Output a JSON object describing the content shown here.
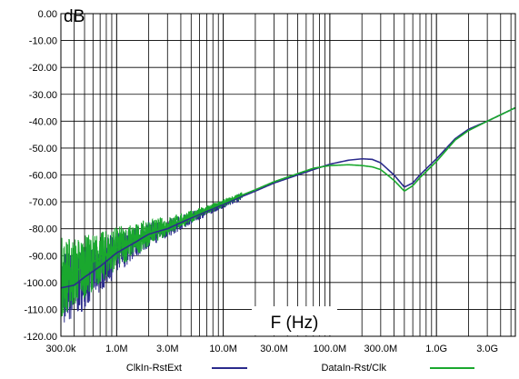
{
  "chart_data": {
    "type": "line",
    "title": "",
    "ylabel": "dB",
    "xlabel": "F (Hz)",
    "x_scale": "log",
    "xlim": [
      300000,
      5500000000
    ],
    "ylim": [
      -120,
      0
    ],
    "grid": true,
    "y_ticks": [
      {
        "value": 0,
        "label": "0.00"
      },
      {
        "value": -10,
        "label": "-10.00"
      },
      {
        "value": -20,
        "label": "-20.00"
      },
      {
        "value": -30,
        "label": "-30.00"
      },
      {
        "value": -40,
        "label": "-40.00"
      },
      {
        "value": -50,
        "label": "-50.00"
      },
      {
        "value": -60,
        "label": "-60.00"
      },
      {
        "value": -70,
        "label": "-70.00"
      },
      {
        "value": -80,
        "label": "-80.00"
      },
      {
        "value": -90,
        "label": "-90.00"
      },
      {
        "value": -100,
        "label": "-100.00"
      },
      {
        "value": -110,
        "label": "-110.00"
      },
      {
        "value": -120,
        "label": "-120.00"
      }
    ],
    "x_ticks": [
      {
        "value": 300000,
        "label": "300.0k"
      },
      {
        "value": 1000000,
        "label": "1.0M"
      },
      {
        "value": 3000000,
        "label": "3.0M"
      },
      {
        "value": 10000000,
        "label": "10.0M"
      },
      {
        "value": 30000000,
        "label": "30.0M"
      },
      {
        "value": 100000000,
        "label": "100.0M"
      },
      {
        "value": 300000000,
        "label": "300.0M"
      },
      {
        "value": 1000000000,
        "label": "1.0G"
      },
      {
        "value": 3000000000,
        "label": "3.0G"
      }
    ],
    "legend_position": "bottom",
    "series": [
      {
        "name": "ClkIn-RstExt",
        "color": "#2b2b8c",
        "x": [
          300000,
          400000,
          500000,
          700000,
          1000000,
          1500000,
          2000000,
          3000000,
          5000000,
          7000000,
          10000000,
          15000000,
          20000000,
          30000000,
          50000000,
          70000000,
          100000000,
          150000000,
          200000000,
          250000000,
          300000000,
          400000000,
          500000000,
          600000000,
          700000000,
          1000000000,
          1500000000,
          2000000000,
          3000000000,
          5500000000
        ],
        "y": [
          -102,
          -101,
          -98,
          -94,
          -89,
          -85,
          -82,
          -80,
          -76,
          -73.5,
          -71,
          -68,
          -66,
          -63,
          -60,
          -58,
          -56,
          -54.5,
          -54,
          -54.2,
          -55.5,
          -60,
          -64.5,
          -63,
          -60,
          -54,
          -46.5,
          -43,
          -40,
          -35
        ]
      },
      {
        "name": "DataIn-Rst/Clk",
        "color": "#1aa82e",
        "x": [
          300000,
          400000,
          500000,
          700000,
          1000000,
          1500000,
          2000000,
          3000000,
          5000000,
          7000000,
          10000000,
          15000000,
          20000000,
          30000000,
          50000000,
          70000000,
          100000000,
          150000000,
          200000000,
          250000000,
          300000000,
          400000000,
          500000000,
          600000000,
          700000000,
          1000000000,
          1500000000,
          2000000000,
          3000000000,
          5500000000
        ],
        "y": [
          -98,
          -96,
          -94,
          -91,
          -87,
          -84,
          -81.5,
          -79,
          -75.5,
          -73,
          -70.5,
          -67.5,
          -65.5,
          -62.5,
          -59.5,
          -57.5,
          -56.5,
          -56.2,
          -56.5,
          -57,
          -58,
          -62,
          -66,
          -64,
          -61,
          -55,
          -47,
          -43.5,
          -40,
          -35
        ]
      }
    ]
  }
}
